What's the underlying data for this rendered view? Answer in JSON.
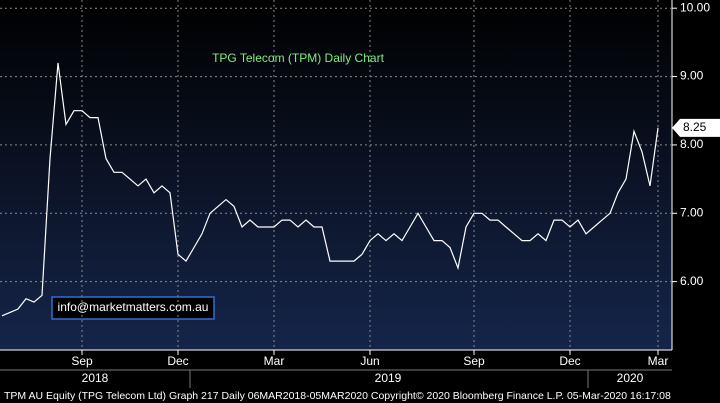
{
  "chart_data": {
    "type": "line",
    "title": "TPG Telecom (TPM) Daily Chart",
    "annotation": "info@marketmatters.com.au",
    "footer": "TPM AU Equity (TPG Telecom Ltd) Graph 217  Daily 06MAR2018-05MAR2020 Copyright© 2020 Bloomberg Finance L.P. 05-Mar-2020 16:17:08",
    "years": [
      "2018",
      "2019",
      "2020"
    ],
    "categories": [
      null,
      null,
      null,
      null,
      null,
      null,
      null,
      null,
      null,
      null,
      "Sep",
      null,
      null,
      null,
      null,
      null,
      null,
      null,
      null,
      null,
      null,
      null,
      "Dec",
      null,
      null,
      null,
      null,
      null,
      null,
      null,
      null,
      null,
      null,
      null,
      "Mar",
      null,
      null,
      null,
      null,
      null,
      null,
      null,
      null,
      null,
      null,
      null,
      "Jun",
      null,
      null,
      null,
      null,
      null,
      null,
      null,
      null,
      null,
      null,
      null,
      null,
      "Sep",
      null,
      null,
      null,
      null,
      null,
      null,
      null,
      null,
      null,
      null,
      null,
      "Dec",
      null,
      null,
      null,
      null,
      null,
      null,
      null,
      null,
      null,
      null,
      "Mar"
    ],
    "values": [
      5.5,
      5.55,
      5.6,
      5.75,
      5.7,
      5.8,
      7.8,
      9.2,
      8.3,
      8.5,
      8.5,
      8.4,
      8.4,
      7.8,
      7.6,
      7.6,
      7.5,
      7.4,
      7.5,
      7.3,
      7.4,
      7.3,
      6.4,
      6.3,
      6.5,
      6.7,
      7.0,
      7.1,
      7.2,
      7.1,
      6.8,
      6.9,
      6.8,
      6.8,
      6.8,
      6.9,
      6.9,
      6.8,
      6.9,
      6.8,
      6.8,
      6.3,
      6.3,
      6.3,
      6.3,
      6.4,
      6.6,
      6.7,
      6.6,
      6.7,
      6.6,
      6.8,
      7.0,
      6.8,
      6.6,
      6.6,
      6.5,
      6.2,
      6.8,
      7.0,
      7.0,
      6.9,
      6.9,
      6.8,
      6.7,
      6.6,
      6.6,
      6.7,
      6.6,
      6.9,
      6.9,
      6.8,
      6.9,
      6.7,
      6.8,
      6.9,
      7.0,
      7.3,
      7.5,
      8.2,
      7.9,
      7.4,
      8.25
    ],
    "color": "#ffffff",
    "last_price": 8.25,
    "ylim": [
      5.0,
      10.12
    ],
    "yticks": [
      {
        "value": 6,
        "label": "6.00"
      },
      {
        "value": 7,
        "label": "7.00"
      },
      {
        "value": 8,
        "label": "8.00"
      },
      {
        "value": 9,
        "label": "9.00"
      },
      {
        "value": 10,
        "label": "10.00"
      }
    ],
    "grid": true
  }
}
